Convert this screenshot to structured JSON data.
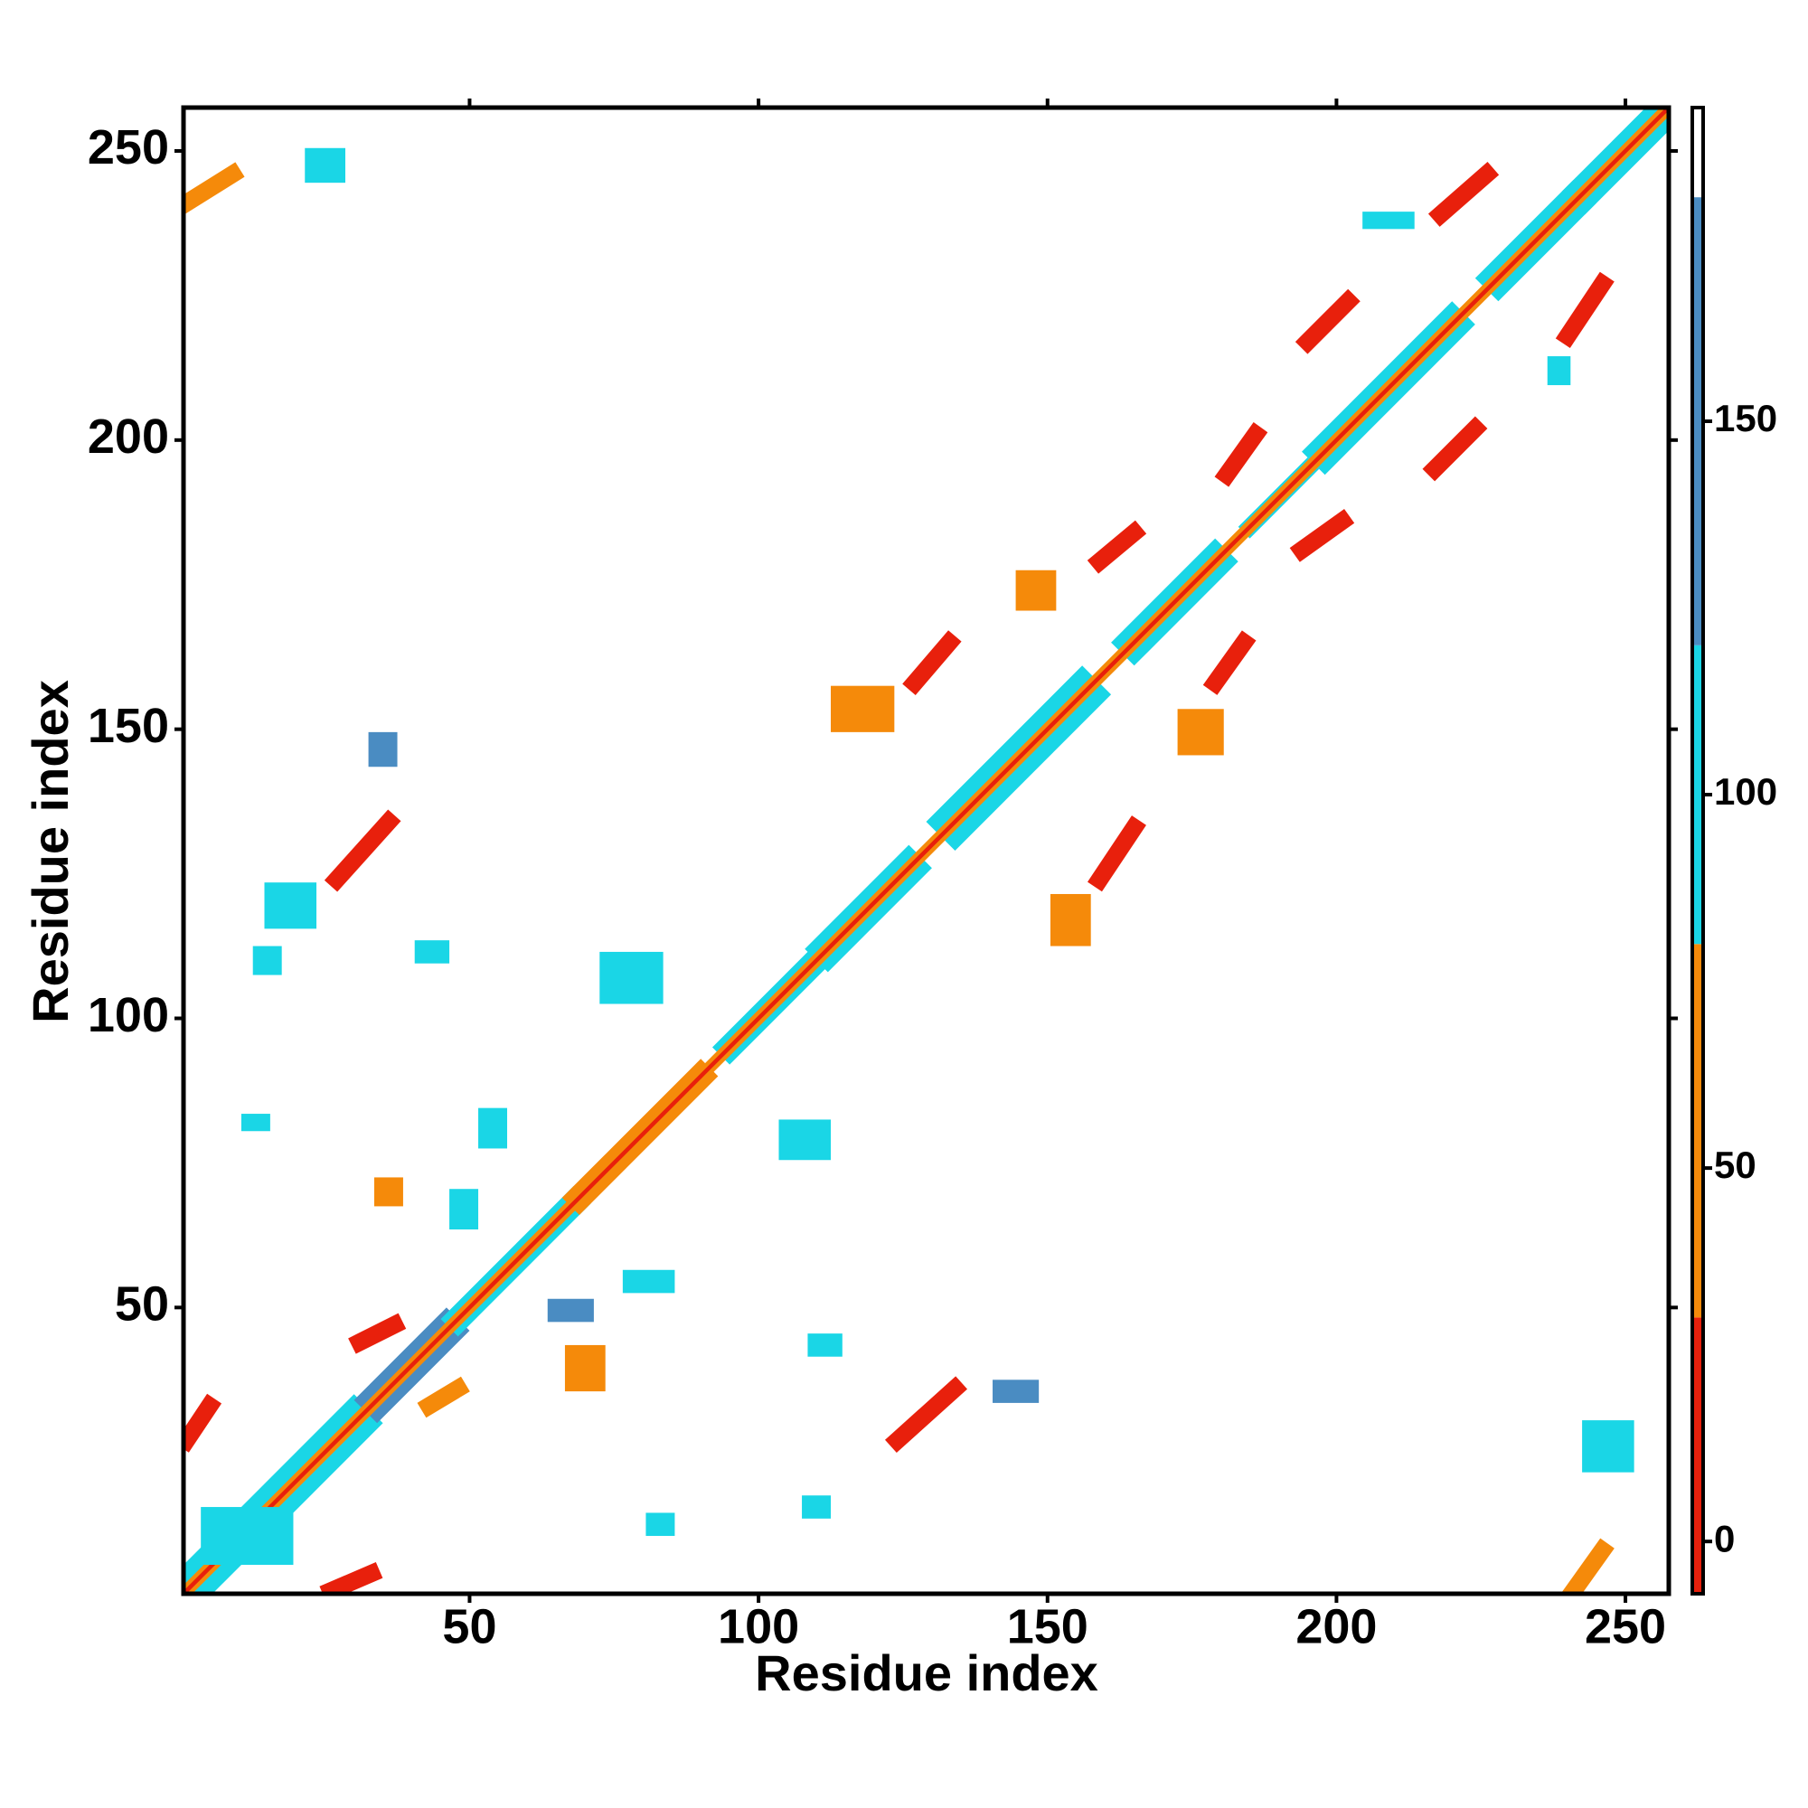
{
  "chart_data": {
    "type": "heatmap",
    "xlabel": "Residue index",
    "ylabel": "Residue index",
    "xlim": [
      0.5,
      257.5
    ],
    "ylim": [
      0.5,
      257.5
    ],
    "xticks": [
      50,
      100,
      150,
      200,
      250
    ],
    "yticks": [
      50,
      100,
      150,
      200,
      250
    ],
    "diagonal_bands": [
      {
        "from": 4,
        "to": 30,
        "halfwidth": 5,
        "value": 95
      },
      {
        "from": 34,
        "to": 46,
        "halfwidth": 4,
        "value": 140
      },
      {
        "from": 48,
        "to": 68,
        "halfwidth": 3,
        "value": 90
      },
      {
        "from": 69,
        "to": 90,
        "halfwidth": 3,
        "value": 60
      },
      {
        "from": 95,
        "to": 110,
        "halfwidth": 3,
        "value": 90
      },
      {
        "from": 112,
        "to": 126,
        "halfwidth": 4,
        "value": 95
      },
      {
        "from": 134,
        "to": 156,
        "halfwidth": 5,
        "value": 95
      },
      {
        "from": 165,
        "to": 179,
        "halfwidth": 4,
        "value": 100
      },
      {
        "from": 185,
        "to": 195,
        "halfwidth": 2,
        "value": 95
      },
      {
        "from": 198,
        "to": 220,
        "halfwidth": 4,
        "value": 95
      },
      {
        "from": 228,
        "to": 241,
        "halfwidth": 4,
        "value": 100
      },
      {
        "from": 243,
        "to": 257,
        "halfwidth": 4,
        "value": 95
      },
      {
        "from": 1,
        "to": 257,
        "halfwidth": 1.5,
        "value": 45
      },
      {
        "from": 1,
        "to": 257,
        "halfwidth": 0.5,
        "value": 15
      }
    ],
    "strands": [
      {
        "from": [
          127,
          158
        ],
        "to": [
          133,
          165
        ],
        "value": 10
      },
      {
        "from": [
          124,
          27
        ],
        "to": [
          134,
          36
        ],
        "value": 10
      },
      {
        "from": [
          27,
          124
        ],
        "to": [
          36,
          134
        ],
        "value": 10
      },
      {
        "from": [
          159,
          124
        ],
        "to": [
          165,
          133
        ],
        "value": 10
      },
      {
        "from": [
          159,
          179
        ],
        "to": [
          165,
          184
        ],
        "value": 10
      },
      {
        "from": [
          179,
          158
        ],
        "to": [
          184,
          165
        ],
        "value": 10
      },
      {
        "from": [
          181,
          194
        ],
        "to": [
          186,
          201
        ],
        "value": 10
      },
      {
        "from": [
          194,
          181
        ],
        "to": [
          201,
          186
        ],
        "value": 10
      },
      {
        "from": [
          195,
          217
        ],
        "to": [
          202,
          224
        ],
        "value": 10
      },
      {
        "from": [
          217,
          195
        ],
        "to": [
          224,
          202
        ],
        "value": 10
      },
      {
        "from": [
          218,
          239
        ],
        "to": [
          226,
          246
        ],
        "value": 10
      },
      {
        "from": [
          240,
          218
        ],
        "to": [
          246,
          227
        ],
        "value": 10
      },
      {
        "from": [
          1,
          241
        ],
        "to": [
          9,
          246
        ],
        "value": 45
      },
      {
        "from": [
          1,
          27
        ],
        "to": [
          5,
          33
        ],
        "value": 10
      },
      {
        "from": [
          26,
          1
        ],
        "to": [
          33,
          4
        ],
        "value": 10
      },
      {
        "from": [
          241,
          1
        ],
        "to": [
          246,
          8
        ],
        "value": 45
      },
      {
        "from": [
          31,
          44
        ],
        "to": [
          37,
          47
        ],
        "value": 10
      },
      {
        "from": [
          43,
          33
        ],
        "to": [
          48,
          36
        ],
        "value": 45
      }
    ],
    "patches": [
      {
        "x": [
          13,
          17
        ],
        "y": [
          108,
          112
        ],
        "value": 95
      },
      {
        "x": [
          41,
          46
        ],
        "y": [
          110,
          113
        ],
        "value": 95
      },
      {
        "x": [
          73,
          83
        ],
        "y": [
          103,
          111
        ],
        "value": 100
      },
      {
        "x": [
          104,
          112
        ],
        "y": [
          76,
          82
        ],
        "value": 95
      },
      {
        "x": [
          52,
          56
        ],
        "y": [
          78,
          84
        ],
        "value": 95
      },
      {
        "x": [
          47,
          51
        ],
        "y": [
          64,
          70
        ],
        "value": 100
      },
      {
        "x": [
          77,
          85
        ],
        "y": [
          53,
          56
        ],
        "value": 95
      },
      {
        "x": [
          64,
          71
        ],
        "y": [
          48,
          51
        ],
        "value": 140
      },
      {
        "x": [
          109,
          114
        ],
        "y": [
          42,
          45
        ],
        "value": 95
      },
      {
        "x": [
          108,
          112
        ],
        "y": [
          14,
          17
        ],
        "value": 95
      },
      {
        "x": [
          81,
          85
        ],
        "y": [
          11,
          14
        ],
        "value": 100
      },
      {
        "x": [
          11,
          15
        ],
        "y": [
          81,
          83
        ],
        "value": 100
      },
      {
        "x": [
          33,
          37
        ],
        "y": [
          144,
          149
        ],
        "value": 140
      },
      {
        "x": [
          141,
          148
        ],
        "y": [
          34,
          37
        ],
        "value": 140
      },
      {
        "x": [
          243,
          251
        ],
        "y": [
          22,
          30
        ],
        "value": 95
      },
      {
        "x": [
          205,
          213
        ],
        "y": [
          237,
          239
        ],
        "value": 95
      },
      {
        "x": [
          237,
          240
        ],
        "y": [
          210,
          214
        ],
        "value": 95
      },
      {
        "x": [
          22,
          28
        ],
        "y": [
          245,
          250
        ],
        "value": 100
      },
      {
        "x": [
          34,
          38
        ],
        "y": [
          68,
          72
        ],
        "value": 60
      },
      {
        "x": [
          67,
          73
        ],
        "y": [
          36,
          43
        ],
        "value": 60
      },
      {
        "x": [
          4,
          19
        ],
        "y": [
          6,
          15
        ],
        "value": 90
      },
      {
        "x": [
          151,
          157
        ],
        "y": [
          113,
          121
        ],
        "value": 60
      },
      {
        "x": [
          113,
          123
        ],
        "y": [
          150,
          157
        ],
        "value": 60
      },
      {
        "x": [
          173,
          180
        ],
        "y": [
          146,
          153
        ],
        "value": 60
      },
      {
        "x": [
          145,
          151
        ],
        "y": [
          171,
          177
        ],
        "value": 60
      },
      {
        "x": [
          15,
          23
        ],
        "y": [
          116,
          123
        ],
        "value": 95
      }
    ],
    "colorbar": {
      "lim": [
        -7,
        192
      ],
      "ticks": [
        0,
        50,
        100,
        150
      ],
      "bounds": [
        -7,
        30,
        80,
        120,
        180,
        192
      ],
      "colors": [
        "#e8200c",
        "#f58a0a",
        "#1ad6e6",
        "#4a8cc2",
        "#ffffff"
      ]
    }
  }
}
